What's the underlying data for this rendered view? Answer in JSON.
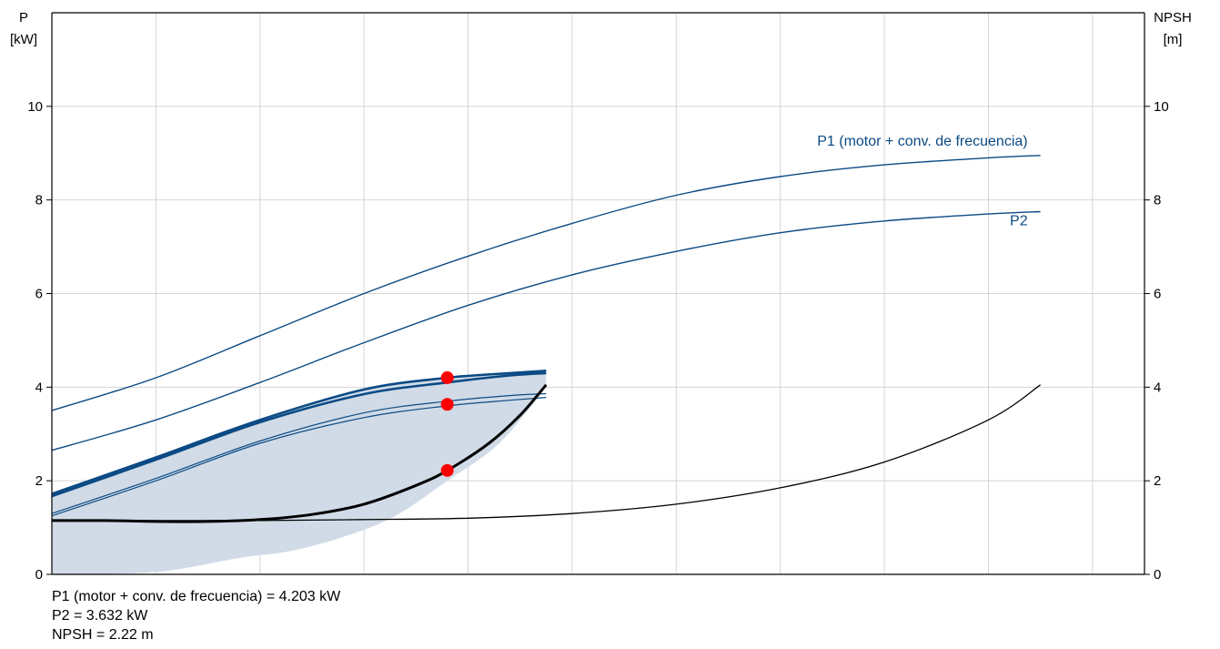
{
  "chart_data": {
    "type": "line",
    "title": "",
    "left_axis": {
      "label_line1": "P",
      "label_line2": "[kW]",
      "ylim": [
        0,
        12
      ],
      "ticks": [
        0,
        2,
        4,
        6,
        8,
        10
      ]
    },
    "right_axis": {
      "label_line1": "NPSH",
      "label_line2": "[m]",
      "ylim": [
        0,
        12
      ],
      "ticks": [
        0,
        2,
        4,
        6,
        8,
        10
      ]
    },
    "xlim": [
      0,
      10.5
    ],
    "grid": true,
    "band_color": "#d0dbe7",
    "series": [
      {
        "name": "P1 (motor + conv. de frecuencia)",
        "role": "full_speed",
        "color": "#0b4a84",
        "x": [
          0,
          1,
          2,
          3,
          4,
          5,
          6,
          7,
          8,
          9,
          9.5
        ],
        "values": [
          3.5,
          4.2,
          5.1,
          6.0,
          6.8,
          7.5,
          8.1,
          8.5,
          8.75,
          8.9,
          8.95
        ]
      },
      {
        "name": "P2",
        "role": "full_speed",
        "color": "#0b4a84",
        "x": [
          0,
          1,
          2,
          3,
          4,
          5,
          6,
          7,
          8,
          9,
          9.5
        ],
        "values": [
          2.65,
          3.3,
          4.1,
          4.95,
          5.75,
          6.4,
          6.9,
          7.3,
          7.55,
          7.7,
          7.75
        ]
      },
      {
        "role": "npsh_full",
        "color": "#000000",
        "x": [
          0,
          1,
          2,
          3,
          4,
          5,
          6,
          7,
          8,
          9,
          9.5
        ],
        "values": [
          1.15,
          1.15,
          1.15,
          1.17,
          1.2,
          1.3,
          1.5,
          1.85,
          2.4,
          3.3,
          4.05
        ]
      },
      {
        "role": "operating_p1_upper",
        "color": "#0b4a84",
        "x": [
          0,
          1,
          2,
          3,
          3.8,
          4.4,
          4.75
        ],
        "values": [
          1.72,
          2.5,
          3.3,
          3.95,
          4.2,
          4.3,
          4.35
        ]
      },
      {
        "role": "operating_p1",
        "color": "#0b4a84",
        "x": [
          0,
          1,
          2,
          3,
          3.8,
          4.4,
          4.75
        ],
        "values": [
          1.67,
          2.45,
          3.25,
          3.85,
          4.1,
          4.25,
          4.3
        ]
      },
      {
        "role": "operating_p2_upper",
        "color": "#0b4a84",
        "x": [
          0,
          1,
          2,
          3,
          3.8,
          4.4,
          4.75
        ],
        "values": [
          1.3,
          2.05,
          2.85,
          3.45,
          3.7,
          3.82,
          3.86
        ]
      },
      {
        "role": "operating_p2",
        "color": "#0b4a84",
        "x": [
          0,
          1,
          2,
          3,
          3.8,
          4.4,
          4.75
        ],
        "values": [
          1.25,
          2.0,
          2.8,
          3.35,
          3.6,
          3.72,
          3.78
        ]
      },
      {
        "role": "operating_npsh",
        "color": "#000000",
        "x": [
          0,
          0.5,
          1,
          1.5,
          2,
          2.5,
          3,
          3.5,
          3.8,
          4.2,
          4.5,
          4.75
        ],
        "values": [
          1.15,
          1.15,
          1.13,
          1.13,
          1.17,
          1.28,
          1.5,
          1.9,
          2.22,
          2.8,
          3.4,
          4.05
        ]
      }
    ],
    "band": {
      "x_upper": [
        0,
        1,
        2,
        3,
        3.8,
        4.4,
        4.75
      ],
      "y_upper": [
        1.72,
        2.5,
        3.3,
        3.95,
        4.2,
        4.3,
        4.35
      ],
      "x_lower": [
        4.75,
        4.3,
        3.8,
        3.3,
        2.8,
        2.3,
        1.8,
        1.0,
        0
      ],
      "y_lower": [
        4.0,
        2.8,
        2.0,
        1.25,
        0.8,
        0.5,
        0.35,
        0.05,
        0
      ]
    },
    "points": [
      {
        "label": "P1",
        "x": 3.8,
        "y": 4.203,
        "color": "#ff0000"
      },
      {
        "label": "P2",
        "x": 3.8,
        "y": 3.632,
        "color": "#ff0000"
      },
      {
        "label": "NPSH",
        "x": 3.8,
        "y": 2.22,
        "color": "#ff0000"
      }
    ],
    "curve_labels": [
      {
        "text": "P1 (motor + conv. de frecuencia)",
        "anchor_x": 9.5,
        "anchor_y": 8.95,
        "color": "#0b4a84"
      },
      {
        "text": "P2",
        "anchor_x": 9.5,
        "anchor_y": 7.75,
        "color": "#0b4a84"
      }
    ]
  },
  "results": {
    "p1_line": "P1 (motor + conv. de frecuencia) = 4.203 kW",
    "p2_line": "P2 = 3.632 kW",
    "npsh_line": "NPSH = 2.22 m"
  }
}
